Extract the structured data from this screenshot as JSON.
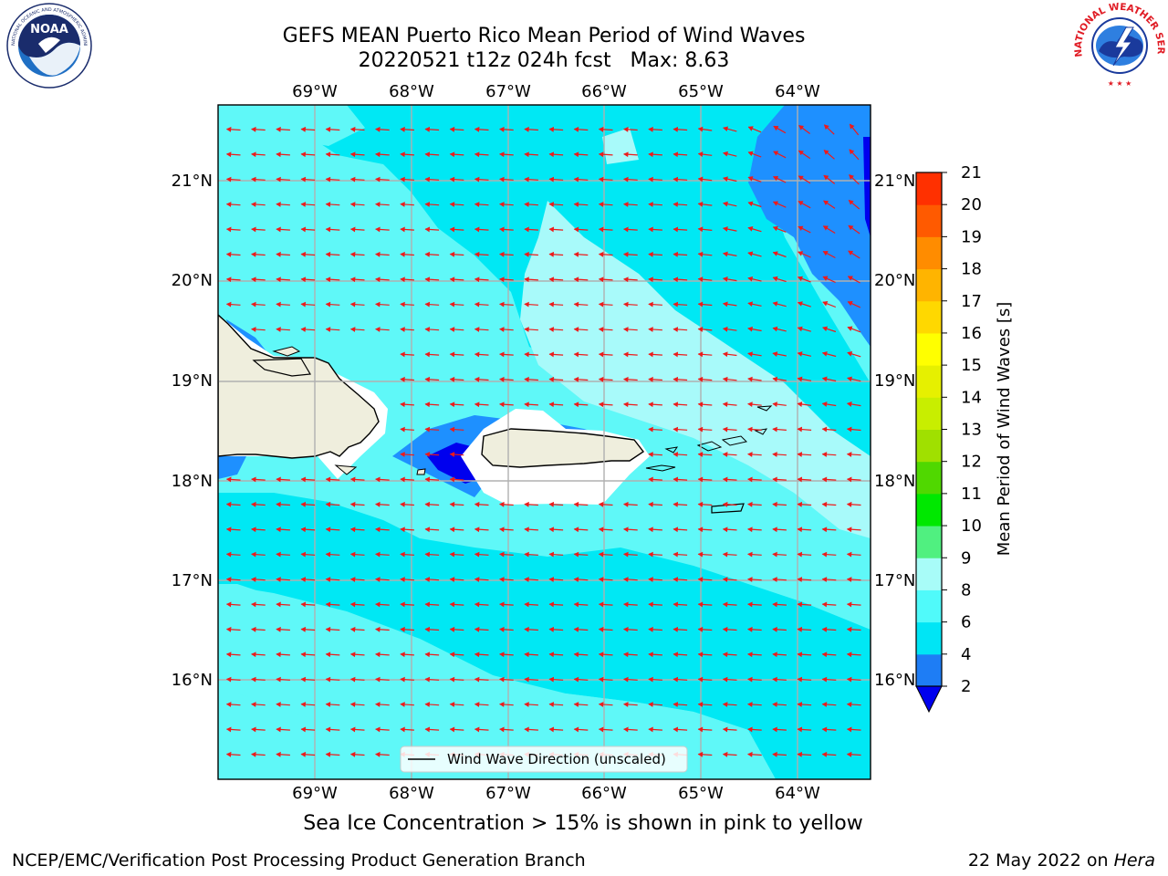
{
  "title": {
    "line1": "GEFS MEAN Puerto Rico Mean Period of Wind Waves",
    "line2": "20220521 t12z 024h fcst   Max: 8.63"
  },
  "logos": {
    "left": {
      "icon": "noaa-logo-icon",
      "text": "NOAA",
      "ring_text": "NATIONAL OCEANIC AND ATMOSPHERIC ADMINISTRATION · U.S. DEPARTMENT OF COMMERCE"
    },
    "right": {
      "icon": "nws-logo-icon",
      "ring_text": "NATIONAL WEATHER SERVICE"
    }
  },
  "map": {
    "lon_labels": [
      "69°W",
      "68°W",
      "67°W",
      "66°W",
      "65°W",
      "64°W"
    ],
    "lat_labels": [
      "21°N",
      "20°N",
      "19°N",
      "18°N",
      "17°N",
      "16°N"
    ],
    "legend_label": "Wind Wave Direction (unscaled)",
    "colors": {
      "bg_light": "#5ff8f8",
      "band_mid": "#00e8f4",
      "band_pale": "#a8fafa",
      "blue_mid": "#1e90ff",
      "blue_deep": "#0000ee",
      "land": "#efeedd",
      "no_data": "#ffffff",
      "arrow": "#ee1a1a",
      "grid": "#b0b0b0"
    },
    "arrows": "westward to southwestward, red"
  },
  "colorbar": {
    "label": "Mean Period of Wind Waves [s]",
    "ticks": [
      "2",
      "4",
      "6",
      "8",
      "9",
      "10",
      "11",
      "12",
      "13",
      "14",
      "15",
      "16",
      "17",
      "18",
      "19",
      "20",
      "21"
    ],
    "colors": [
      "#1e7df5",
      "#00e5f5",
      "#50fafa",
      "#a8fcf8",
      "#50f080",
      "#00e800",
      "#50d800",
      "#a0e000",
      "#c8ee00",
      "#e6f000",
      "#ffff00",
      "#ffd800",
      "#ffb400",
      "#ff8c00",
      "#ff5a00",
      "#ff3000",
      "#ff0000"
    ],
    "extend_color": "#0000ee"
  },
  "sea_ice_note": "Sea Ice Concentration > 15% is shown in pink to yellow",
  "footer": {
    "left": "NCEP/EMC/Verification Post Processing Product Generation Branch",
    "date": "22 May 2022 on ",
    "machine": "Hera"
  }
}
